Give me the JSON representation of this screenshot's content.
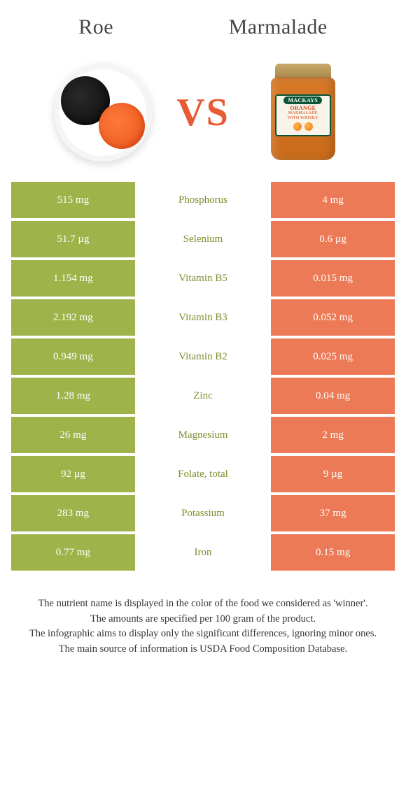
{
  "header": {
    "left_title": "Roe",
    "right_title": "Marmalade",
    "vs": "VS",
    "jar_brand": "MACKAYS",
    "jar_flavor": "ORANGE",
    "jar_sub1": "MARMALADE",
    "jar_sub2": "WITH WHISKY"
  },
  "colors": {
    "left": "#9eb34a",
    "right": "#ec7a56",
    "nutrient_winner_left": "#7a8f2a",
    "nutrient_winner_right": "#d85a34",
    "background": "#ffffff",
    "footer_text": "#333333"
  },
  "table": {
    "rows": [
      {
        "nutrient": "Phosphorus",
        "left": "515 mg",
        "right": "4 mg",
        "winner": "left"
      },
      {
        "nutrient": "Selenium",
        "left": "51.7 µg",
        "right": "0.6 µg",
        "winner": "left"
      },
      {
        "nutrient": "Vitamin B5",
        "left": "1.154 mg",
        "right": "0.015 mg",
        "winner": "left"
      },
      {
        "nutrient": "Vitamin B3",
        "left": "2.192 mg",
        "right": "0.052 mg",
        "winner": "left"
      },
      {
        "nutrient": "Vitamin B2",
        "left": "0.949 mg",
        "right": "0.025 mg",
        "winner": "left"
      },
      {
        "nutrient": "Zinc",
        "left": "1.28 mg",
        "right": "0.04 mg",
        "winner": "left"
      },
      {
        "nutrient": "Magnesium",
        "left": "26 mg",
        "right": "2 mg",
        "winner": "left"
      },
      {
        "nutrient": "Folate, total",
        "left": "92 µg",
        "right": "9 µg",
        "winner": "left"
      },
      {
        "nutrient": "Potassium",
        "left": "283 mg",
        "right": "37 mg",
        "winner": "left"
      },
      {
        "nutrient": "Iron",
        "left": "0.77 mg",
        "right": "0.15 mg",
        "winner": "left"
      }
    ]
  },
  "footer": {
    "line1": "The nutrient name is displayed in the color of the food we considered as 'winner'.",
    "line2": "The amounts are specified per 100 gram of the product.",
    "line3": "The infographic aims to display only the significant differences, ignoring minor ones.",
    "line4": "The main source of information is USDA Food Composition Database."
  }
}
